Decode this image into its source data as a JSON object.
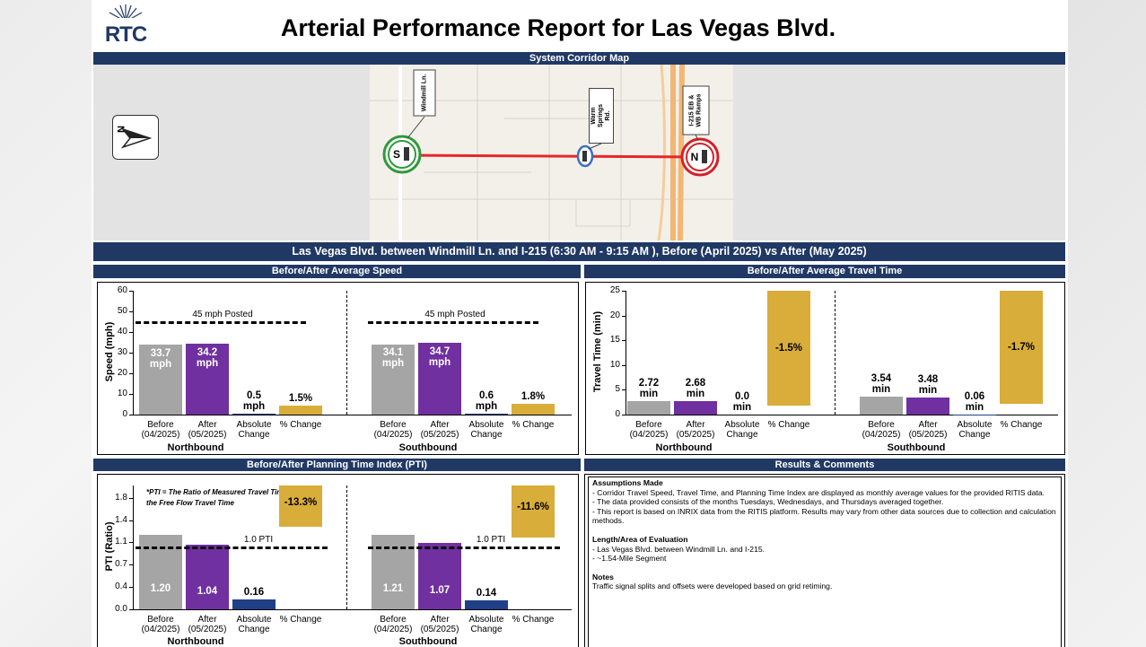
{
  "header": {
    "logo": "RTC",
    "title": "Arterial Performance Report for Las Vegas Blvd."
  },
  "map": {
    "title": "System Corridor Map",
    "north": "N",
    "signals": [
      {
        "label": "Windmill Ln.",
        "marker": "S"
      },
      {
        "label": "Warm Springs Rd."
      },
      {
        "label": "I-215 EB & WB Ramps",
        "marker": "N"
      }
    ]
  },
  "corridor_banner": "Las Vegas Blvd. between Windmill Ln. and I-215 (6:30 AM - 9:15 AM ), Before (April 2025) vs After (May 2025)",
  "chart_data": [
    {
      "type": "bar",
      "title": "Before/After Average Speed",
      "y_label": "Speed (mph)",
      "ylim": [
        0,
        60
      ],
      "yticks": [
        0,
        10,
        20,
        30,
        40,
        50,
        60
      ],
      "y2lim": [
        0,
        20
      ],
      "groups": [
        "Northbound",
        "Southbound"
      ],
      "categories": [
        "Before (04/2025)",
        "After (05/2025)",
        "Absolute Change",
        "% Change"
      ],
      "axis": [
        "y",
        "y",
        "y",
        "y2"
      ],
      "colors": [
        "#a5a5a5",
        "#7030a0",
        "#1f3f87",
        "#d9ad3a"
      ],
      "values": [
        [
          33.7,
          34.2,
          0.5,
          1.5
        ],
        [
          34.1,
          34.7,
          0.6,
          1.8
        ]
      ],
      "value_labels": [
        [
          "33.7 mph",
          "34.2 mph",
          "0.5 mph",
          "1.5%"
        ],
        [
          "34.1 mph",
          "34.7 mph",
          "0.6 mph",
          "1.8%"
        ]
      ],
      "reference": {
        "label": "45 mph Posted",
        "value": 45
      }
    },
    {
      "type": "bar",
      "title": "Before/After Average Travel Time",
      "y_label": "Travel Time (min)",
      "ylim": [
        0,
        25
      ],
      "yticks": [
        0,
        5,
        10,
        15,
        20,
        25
      ],
      "y2lim": [
        0,
        -20
      ],
      "groups": [
        "Northbound",
        "Southbound"
      ],
      "categories": [
        "Before (04/2025)",
        "After (05/2025)",
        "Absolute Change",
        "% Change"
      ],
      "axis": [
        "y",
        "y",
        "y",
        "y2"
      ],
      "colors": [
        "#a5a5a5",
        "#7030a0",
        "#1f3f87",
        "#d9ad3a"
      ],
      "values": [
        [
          2.72,
          2.68,
          0.0,
          -1.5
        ],
        [
          3.54,
          3.48,
          0.06,
          -1.7
        ]
      ],
      "value_labels": [
        [
          "2.72 min",
          "2.68 min",
          "0.0 min",
          "-1.5%"
        ],
        [
          "3.54 min",
          "3.48 min",
          "0.06 min",
          "-1.7%"
        ]
      ]
    },
    {
      "type": "bar",
      "title": "Before/After Planning Time Index (PTI)",
      "y_label": "PTI (Ratio)",
      "note": "*PTI = The Ratio of Measured Travel Time to the Free Flow Travel Time",
      "ylim": [
        0,
        2
      ],
      "yticks": [
        {
          "value": 0,
          "label": "0.0"
        },
        {
          "value": 0.36,
          "label": "0.4"
        },
        {
          "value": 0.72,
          "label": "0.7"
        },
        {
          "value": 1.08,
          "label": "1.1"
        },
        {
          "value": 1.44,
          "label": "1.4"
        },
        1.8
      ],
      "y2lim": [
        0,
        -20
      ],
      "groups": [
        "Northbound",
        "Southbound"
      ],
      "categories": [
        "Before (04/2025)",
        "After (05/2025)",
        "Absolute Change",
        "% Change"
      ],
      "axis": [
        "y",
        "y",
        "y",
        "y2"
      ],
      "colors": [
        "#a5a5a5",
        "#7030a0",
        "#1f3f87",
        "#d9ad3a"
      ],
      "values": [
        [
          1.2,
          1.04,
          0.16,
          -13.3
        ],
        [
          1.21,
          1.07,
          0.14,
          -11.6
        ]
      ],
      "value_labels": [
        [
          "1.20",
          "1.04",
          "0.16",
          "-13.3%"
        ],
        [
          "1.21",
          "1.07",
          "0.14",
          "-11.6%"
        ]
      ],
      "reference": {
        "label": "1.0 PTI",
        "value": 1.0
      }
    }
  ],
  "comments": {
    "title": "Results & Comments",
    "sections": [
      {
        "heading": "Assumptions Made",
        "lines": [
          "- Corridor Travel Speed, Travel Time, and Planning Time Index are displayed as monthly average values for the provided RITIS data.",
          "- The data provided consists of the months Tuesdays, Wednesdays, and Thursdays averaged together.",
          "- This report is based on INRIX data from the RITIS platform.  Results may vary from other data sources due to collection and calculation methods."
        ]
      },
      {
        "heading": "Length/Area of Evaluation",
        "lines": [
          "- Las Vegas Blvd. between Windmill Ln. and I-215.",
          "- ~1.54-Mile Segment"
        ]
      },
      {
        "heading": "Notes",
        "lines": [
          "Traffic signal splits and offsets were developed based on grid retiming."
        ]
      }
    ]
  }
}
